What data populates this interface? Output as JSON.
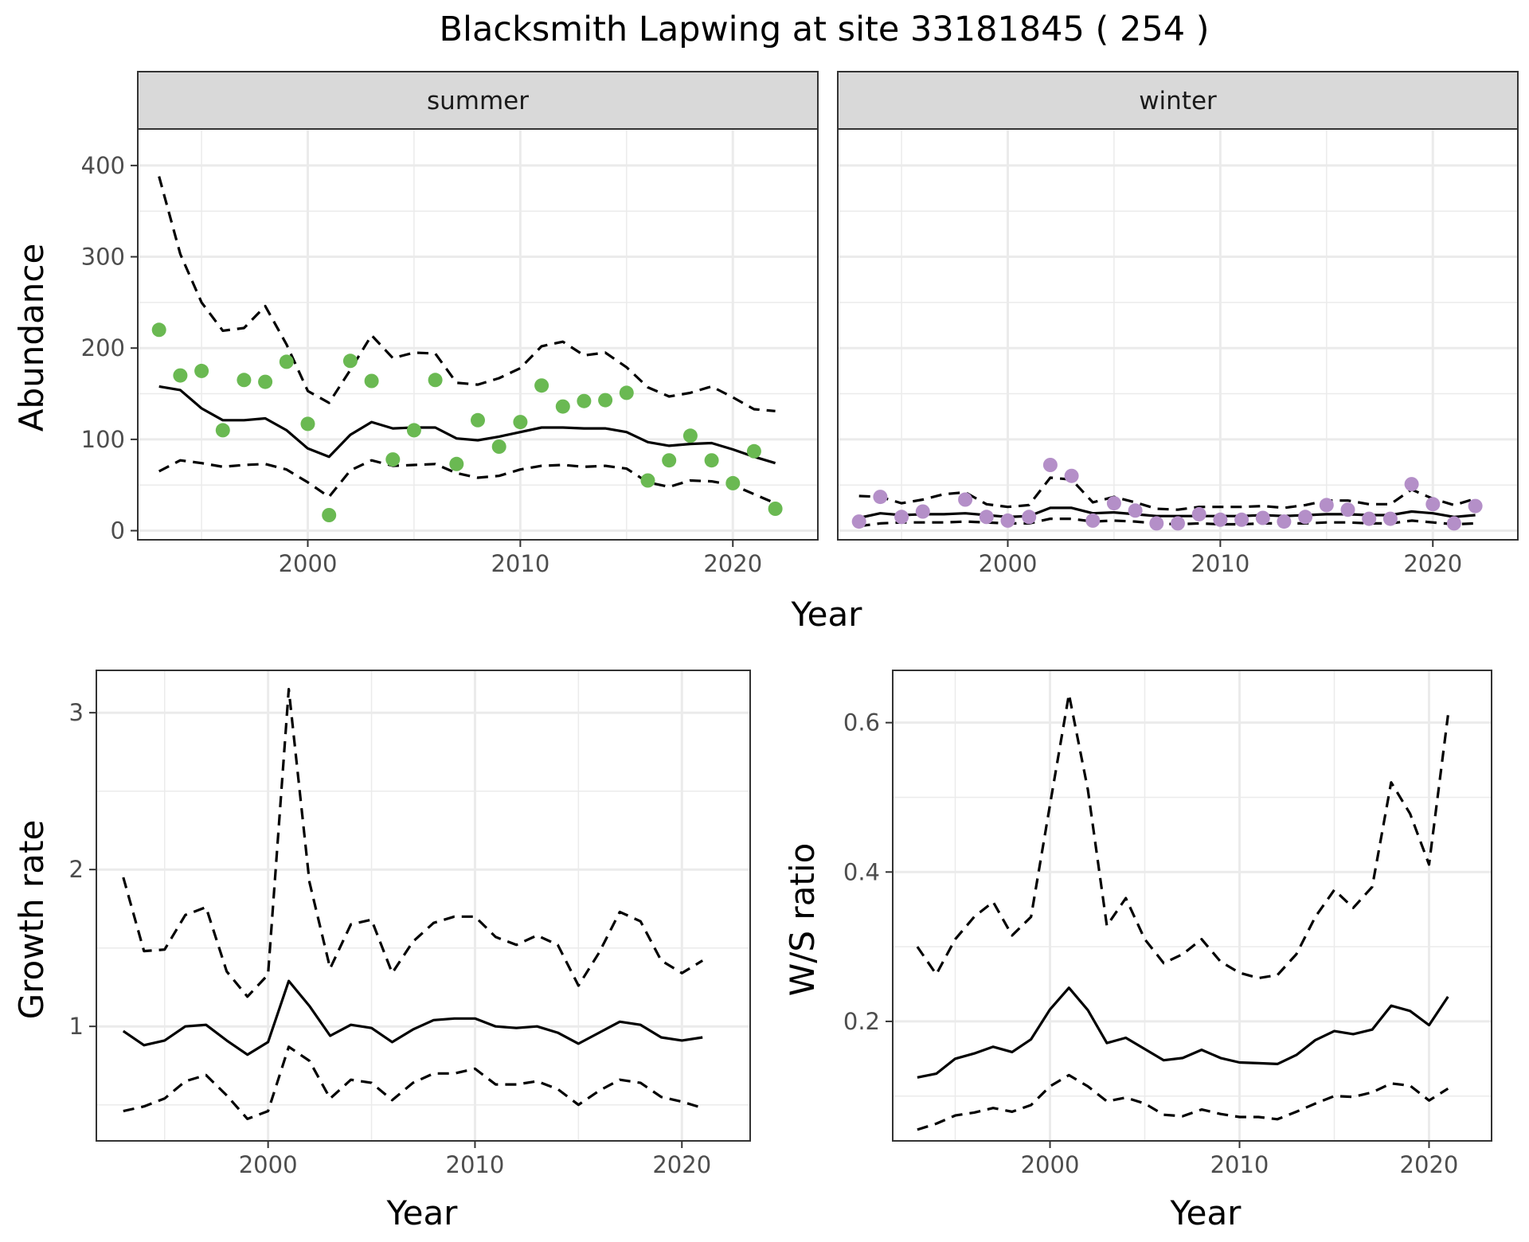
{
  "title": "Blacksmith Lapwing at site 33181845 ( 254 )",
  "colors": {
    "summer_points": "#6ab952",
    "winter_points": "#b48fc8",
    "lines": "#000000",
    "strip_bg": "#d9d9d9",
    "grid": "#ebebeb"
  },
  "chart_data": [
    {
      "type": "scatter",
      "panel": "summer",
      "strip_label": "summer",
      "xlabel": "Year",
      "ylabel": "Abundance",
      "xlim": [
        1992,
        2024
      ],
      "ylim": [
        -10,
        440
      ],
      "x_ticks": [
        2000,
        2010,
        2020
      ],
      "y_ticks": [
        0,
        100,
        200,
        300,
        400
      ],
      "grid": true,
      "x": [
        1993,
        1994,
        1995,
        1996,
        1997,
        1998,
        1999,
        2000,
        2001,
        2002,
        2003,
        2004,
        2005,
        2006,
        2007,
        2008,
        2009,
        2010,
        2011,
        2012,
        2013,
        2014,
        2015,
        2016,
        2017,
        2018,
        2019,
        2020,
        2021,
        2022
      ],
      "observed": [
        220,
        170,
        175,
        110,
        165,
        163,
        185,
        117,
        17,
        186,
        164,
        78,
        110,
        165,
        73,
        121,
        92,
        119,
        159,
        136,
        142,
        143,
        151,
        55,
        77,
        104,
        77,
        52,
        87,
        24
      ],
      "estimate": [
        158,
        154,
        134,
        121,
        121,
        123,
        110,
        90,
        81,
        105,
        119,
        112,
        113,
        113,
        101,
        99,
        103,
        108,
        113,
        113,
        112,
        112,
        108,
        97,
        93,
        95,
        96,
        89,
        81,
        74
      ],
      "upper": [
        388,
        303,
        250,
        219,
        222,
        246,
        204,
        153,
        140,
        176,
        214,
        189,
        195,
        194,
        162,
        160,
        167,
        178,
        202,
        207,
        192,
        195,
        179,
        157,
        147,
        151,
        158,
        146,
        133,
        131
      ],
      "lower": [
        65,
        77,
        74,
        70,
        72,
        73,
        67,
        53,
        37,
        66,
        77,
        71,
        72,
        73,
        63,
        58,
        60,
        67,
        71,
        72,
        70,
        71,
        68,
        53,
        48,
        55,
        54,
        50,
        40,
        30
      ]
    },
    {
      "type": "scatter",
      "panel": "winter",
      "strip_label": "winter",
      "xlabel": "Year",
      "ylabel": "Abundance",
      "xlim": [
        1992,
        2024
      ],
      "ylim": [
        -10,
        440
      ],
      "x_ticks": [
        2000,
        2010,
        2020
      ],
      "grid": true,
      "x": [
        1993,
        1994,
        1995,
        1996,
        1997,
        1998,
        1999,
        2000,
        2001,
        2002,
        2003,
        2004,
        2005,
        2006,
        2007,
        2008,
        2009,
        2010,
        2011,
        2012,
        2013,
        2014,
        2015,
        2016,
        2017,
        2018,
        2019,
        2020,
        2021,
        2022
      ],
      "observed": [
        10,
        37,
        15,
        21,
        null,
        34,
        15,
        11,
        15,
        72,
        60,
        11,
        30,
        22,
        8,
        8,
        18,
        12,
        12,
        14,
        10,
        15,
        28,
        23,
        13,
        13,
        51,
        29,
        8,
        27
      ],
      "estimate": [
        14,
        19,
        17,
        18,
        18,
        19,
        17,
        15,
        16,
        25,
        25,
        19,
        20,
        18,
        16,
        16,
        16,
        16,
        16,
        17,
        16,
        17,
        18,
        18,
        17,
        17,
        21,
        19,
        15,
        17
      ],
      "upper": [
        38,
        37,
        30,
        34,
        40,
        42,
        29,
        26,
        28,
        58,
        56,
        31,
        37,
        31,
        24,
        23,
        26,
        26,
        26,
        27,
        25,
        28,
        33,
        33,
        29,
        29,
        45,
        35,
        28,
        35
      ],
      "lower": [
        5,
        8,
        9,
        9,
        9,
        10,
        9,
        8,
        8,
        13,
        13,
        10,
        11,
        10,
        8,
        7,
        8,
        7,
        7,
        8,
        8,
        8,
        9,
        9,
        8,
        8,
        11,
        9,
        7,
        8
      ]
    },
    {
      "type": "line",
      "panel": "growth",
      "xlabel": "Year",
      "ylabel": "Growth rate",
      "xlim": [
        1991.7,
        2023.3
      ],
      "ylim": [
        0.27,
        3.27
      ],
      "x_ticks": [
        2000,
        2010,
        2020
      ],
      "y_ticks": [
        1,
        2,
        3
      ],
      "grid": true,
      "x": [
        1993,
        1994,
        1995,
        1996,
        1997,
        1998,
        1999,
        2000,
        2001,
        2002,
        2003,
        2004,
        2005,
        2006,
        2007,
        2008,
        2009,
        2010,
        2011,
        2012,
        2013,
        2014,
        2015,
        2016,
        2017,
        2018,
        2019,
        2020,
        2021
      ],
      "estimate": [
        0.97,
        0.88,
        0.91,
        1.0,
        1.01,
        0.91,
        0.82,
        0.9,
        1.29,
        1.13,
        0.94,
        1.01,
        0.99,
        0.9,
        0.98,
        1.04,
        1.05,
        1.05,
        1.0,
        0.99,
        1.0,
        0.96,
        0.89,
        0.96,
        1.03,
        1.01,
        0.93,
        0.91,
        0.93
      ],
      "upper": [
        1.95,
        1.48,
        1.49,
        1.71,
        1.76,
        1.35,
        1.19,
        1.33,
        3.15,
        1.92,
        1.37,
        1.65,
        1.68,
        1.34,
        1.54,
        1.66,
        1.7,
        1.7,
        1.57,
        1.52,
        1.58,
        1.52,
        1.26,
        1.47,
        1.73,
        1.67,
        1.42,
        1.34,
        1.42
      ],
      "lower": [
        0.46,
        0.49,
        0.54,
        0.65,
        0.69,
        0.56,
        0.41,
        0.46,
        0.87,
        0.78,
        0.54,
        0.66,
        0.64,
        0.53,
        0.64,
        0.7,
        0.7,
        0.73,
        0.63,
        0.63,
        0.65,
        0.6,
        0.5,
        0.59,
        0.66,
        0.64,
        0.55,
        0.52,
        0.48
      ]
    },
    {
      "type": "line",
      "panel": "ratio",
      "xlabel": "Year",
      "ylabel": "W/S ratio",
      "xlim": [
        1991.7,
        2023.3
      ],
      "ylim": [
        0.04,
        0.67
      ],
      "x_ticks": [
        2000,
        2010,
        2020
      ],
      "y_ticks": [
        0.2,
        0.4,
        0.6
      ],
      "grid": true,
      "x": [
        1993,
        1994,
        1995,
        1996,
        1997,
        1998,
        1999,
        2000,
        2001,
        2002,
        2003,
        2004,
        2005,
        2006,
        2007,
        2008,
        2009,
        2010,
        2011,
        2012,
        2013,
        2014,
        2015,
        2016,
        2017,
        2018,
        2019,
        2020,
        2021
      ],
      "estimate": [
        0.125,
        0.13,
        0.15,
        0.157,
        0.166,
        0.159,
        0.176,
        0.216,
        0.245,
        0.215,
        0.171,
        0.178,
        0.163,
        0.148,
        0.151,
        0.162,
        0.151,
        0.145,
        0.144,
        0.143,
        0.155,
        0.175,
        0.187,
        0.183,
        0.189,
        0.221,
        0.214,
        0.195,
        0.233
      ],
      "upper": [
        0.3,
        0.263,
        0.31,
        0.34,
        0.36,
        0.315,
        0.34,
        0.49,
        0.638,
        0.51,
        0.328,
        0.365,
        0.31,
        0.278,
        0.29,
        0.31,
        0.28,
        0.265,
        0.258,
        0.262,
        0.29,
        0.34,
        0.376,
        0.352,
        0.38,
        0.52,
        0.478,
        0.41,
        0.61
      ],
      "lower": [
        0.055,
        0.063,
        0.074,
        0.078,
        0.084,
        0.079,
        0.088,
        0.113,
        0.128,
        0.113,
        0.093,
        0.098,
        0.09,
        0.075,
        0.073,
        0.082,
        0.076,
        0.072,
        0.072,
        0.069,
        0.079,
        0.09,
        0.1,
        0.099,
        0.105,
        0.117,
        0.114,
        0.094,
        0.11
      ]
    }
  ]
}
